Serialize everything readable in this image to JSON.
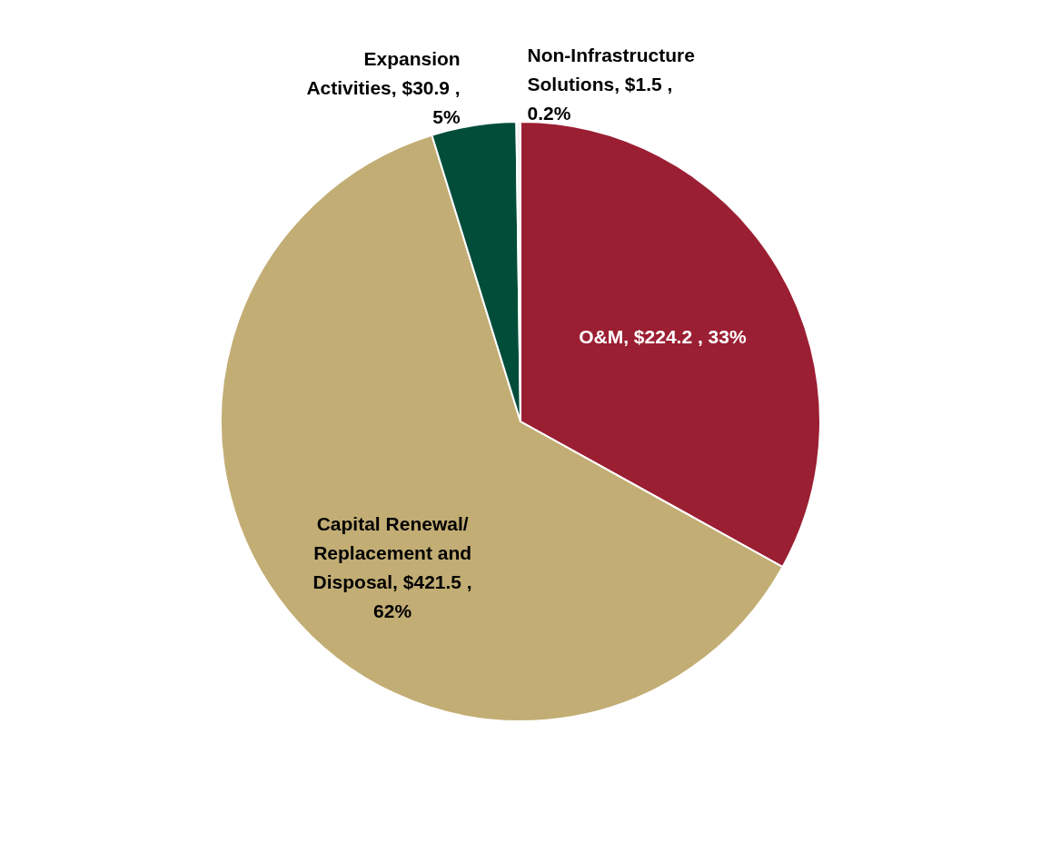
{
  "chart_data": {
    "type": "pie",
    "categories": [
      "O&M",
      "Capital Renewal/ Replacement and Disposal",
      "Expansion Activities",
      "Non-Infrastructure Solutions"
    ],
    "values": [
      224.2,
      421.5,
      30.9,
      1.5
    ],
    "value_labels": [
      "$224.2 , 33%",
      "$421.5 , 62%",
      "$30.9 , 5%",
      "$1.5 , 0.2%"
    ],
    "colors": [
      "#9b1f33",
      "#c2ad74",
      "#014d3a",
      "#f2f2f2"
    ]
  }
}
